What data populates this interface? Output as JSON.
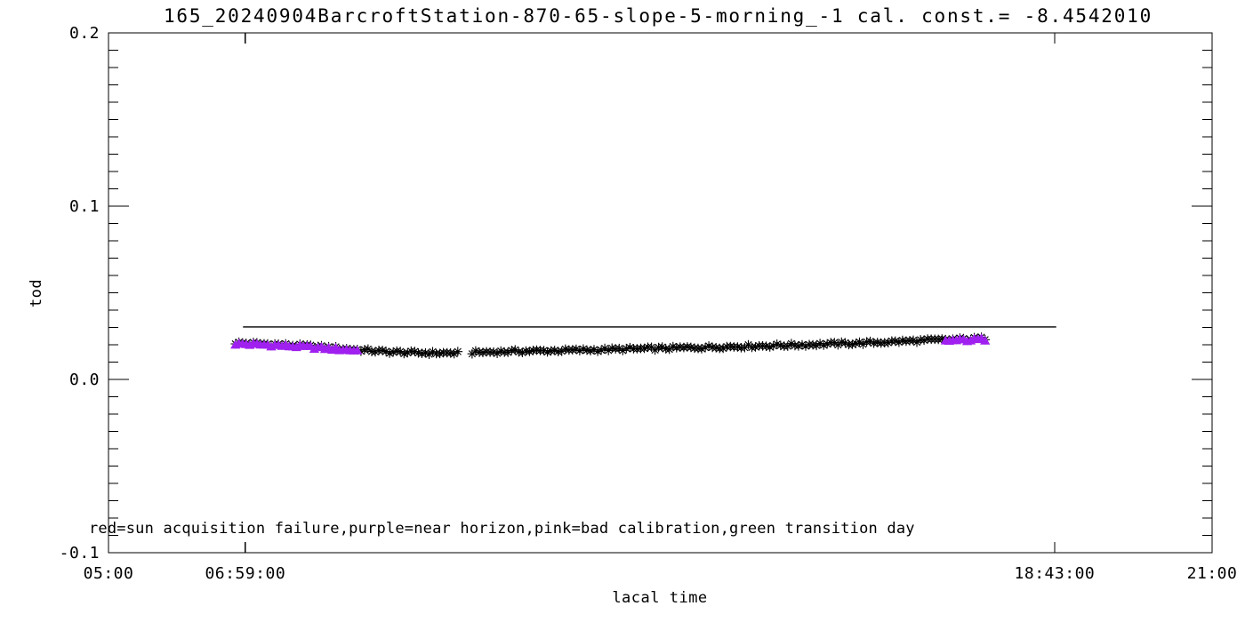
{
  "title": "165_20240904BarcroftStation-870-65-slope-5-morning_-1 cal. const.= -8.4542010",
  "legend_note": "red=sun acquisition failure,purple=near horizon,pink=bad calibration,green transition day",
  "colors": {
    "background": "#ffffff",
    "frame": "#000000",
    "points": "#000000",
    "near_horizon": "#a020f0",
    "reference_line": "#000000",
    "text": "#000000"
  },
  "axes": {
    "x": {
      "label": "lacal time",
      "range_hours": [
        5,
        21
      ],
      "ticks": [
        {
          "t": 5.0,
          "label": "05:00",
          "mark": false
        },
        {
          "t": 6.98333,
          "label": "06:59:00",
          "mark": true
        },
        {
          "t": 18.71667,
          "label": "18:43:00",
          "mark": true
        },
        {
          "t": 21.0,
          "label": "21:00",
          "mark": false
        }
      ]
    },
    "y": {
      "label": "tod",
      "range": [
        -0.1,
        0.2
      ],
      "major_ticks": [
        {
          "v": 0.2,
          "label": "0.2"
        },
        {
          "v": 0.1,
          "label": "0.1"
        },
        {
          "v": 0.0,
          "label": "0.0"
        },
        {
          "v": -0.1,
          "label": "-0.1"
        }
      ],
      "minor_step": 0.01
    }
  },
  "chart_data": {
    "type": "scatter",
    "title": "165_20240904BarcroftStation-870-65-slope-5-morning_-1 cal. const.= -8.4542010",
    "xlabel": "lacal time",
    "ylabel": "tod",
    "xlim_hours": [
      5,
      21
    ],
    "ylim": [
      -0.1,
      0.2
    ],
    "grid": false,
    "annotation": "red=sun acquisition failure,purple=near horizon,pink=bad calibration,green transition day",
    "series": [
      {
        "name": "tod measurements",
        "symbol": "asterisk",
        "color": "#000000",
        "t_start": 6.84,
        "t_end": 17.72,
        "point_spacing_hours": 0.052,
        "jitter_tod": 0.0009,
        "gaps": [
          [
            10.09,
            10.24
          ]
        ],
        "band_anchors": [
          [
            6.84,
            0.0211
          ],
          [
            7.4,
            0.0203
          ],
          [
            7.9,
            0.0192
          ],
          [
            8.5,
            0.0175
          ],
          [
            9.0,
            0.016
          ],
          [
            9.5,
            0.0153
          ],
          [
            10.0,
            0.0152
          ],
          [
            10.5,
            0.0158
          ],
          [
            11.0,
            0.0163
          ],
          [
            11.5,
            0.0166
          ],
          [
            12.0,
            0.017
          ],
          [
            12.5,
            0.0175
          ],
          [
            13.0,
            0.0179
          ],
          [
            13.5,
            0.0184
          ],
          [
            14.0,
            0.0189
          ],
          [
            14.5,
            0.0194
          ],
          [
            15.0,
            0.0199
          ],
          [
            15.5,
            0.0205
          ],
          [
            16.0,
            0.0211
          ],
          [
            16.5,
            0.022
          ],
          [
            17.0,
            0.0227
          ],
          [
            17.4,
            0.0232
          ],
          [
            17.72,
            0.0237
          ]
        ]
      },
      {
        "name": "near horizon flagged points",
        "symbol": "filled-triangle",
        "color": "#a020f0",
        "time_ranges": [
          [
            6.84,
            8.62
          ],
          [
            17.1,
            17.72
          ]
        ]
      }
    ],
    "reference_line": {
      "tod": 0.0303,
      "t_from": 6.95,
      "t_to": 18.74,
      "color": "#000000"
    }
  }
}
